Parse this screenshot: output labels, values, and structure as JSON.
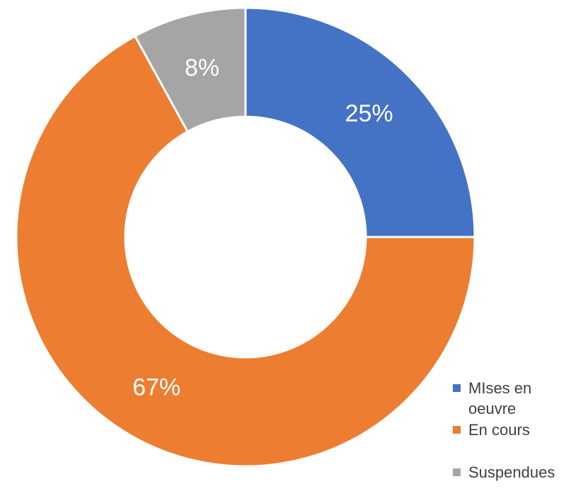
{
  "chart_data": {
    "type": "pie",
    "subtype": "donut",
    "title": "",
    "categories": [
      "MIses en oeuvre",
      "En cours",
      "Suspendues"
    ],
    "values": [
      25,
      67,
      8
    ],
    "labels": [
      "25%",
      "67%",
      "8%"
    ],
    "colors": [
      "#4472C4",
      "#ED7D31",
      "#A5A5A5"
    ],
    "legend_position": "bottom-right"
  }
}
